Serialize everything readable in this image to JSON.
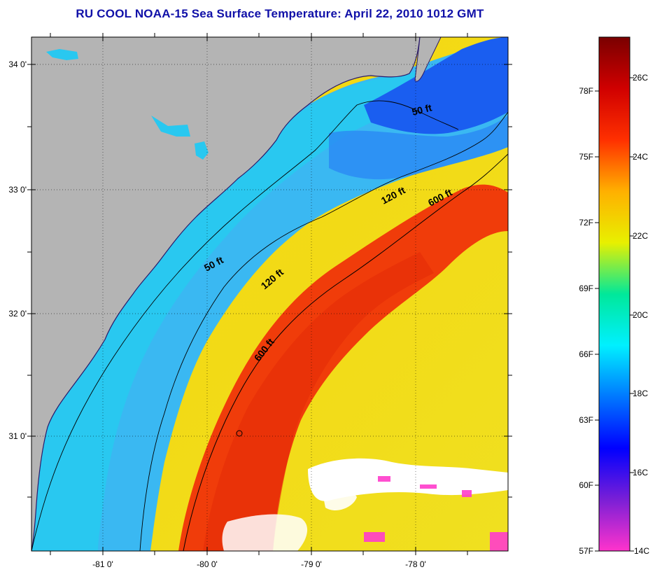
{
  "title": "RU COOL  NOAA-15  Sea Surface Temperature:  April 22, 2010 1012 GMT",
  "map": {
    "lat_ticks": [
      "34 0'",
      "33 0'",
      "32 0'",
      "31 0'"
    ],
    "lon_ticks": [
      "-81 0'",
      "-80 0'",
      "-79 0'",
      "-78 0'"
    ],
    "contour_labels": [
      "50 ft",
      "120 ft",
      "600 ft",
      "50 ft",
      "120 ft",
      "600 ft"
    ],
    "colors": {
      "land": "#b4b4b4",
      "coastal_water": "#29c8f0",
      "shelf_water": "#3ab8f2",
      "gulf_stream": "#f03c0a",
      "offshore_warm": "#f5d40c",
      "cold_north": "#1a5ef0",
      "cloud": "#ffffff"
    }
  },
  "colorbar": {
    "fahrenheit_labels": [
      "78F",
      "75F",
      "72F",
      "69F",
      "66F",
      "63F",
      "60F",
      "57F"
    ],
    "celsius_labels": [
      "26C",
      "24C",
      "22C",
      "20C",
      "18C",
      "16C",
      "14C"
    ],
    "range_c": [
      14,
      27
    ],
    "stops": [
      "#ff33cc",
      "#7a1fd6",
      "#0000ff",
      "#0078ff",
      "#00f0ff",
      "#00e89a",
      "#e8f000",
      "#ffb000",
      "#ff3000",
      "#d00000",
      "#7a0000"
    ]
  }
}
